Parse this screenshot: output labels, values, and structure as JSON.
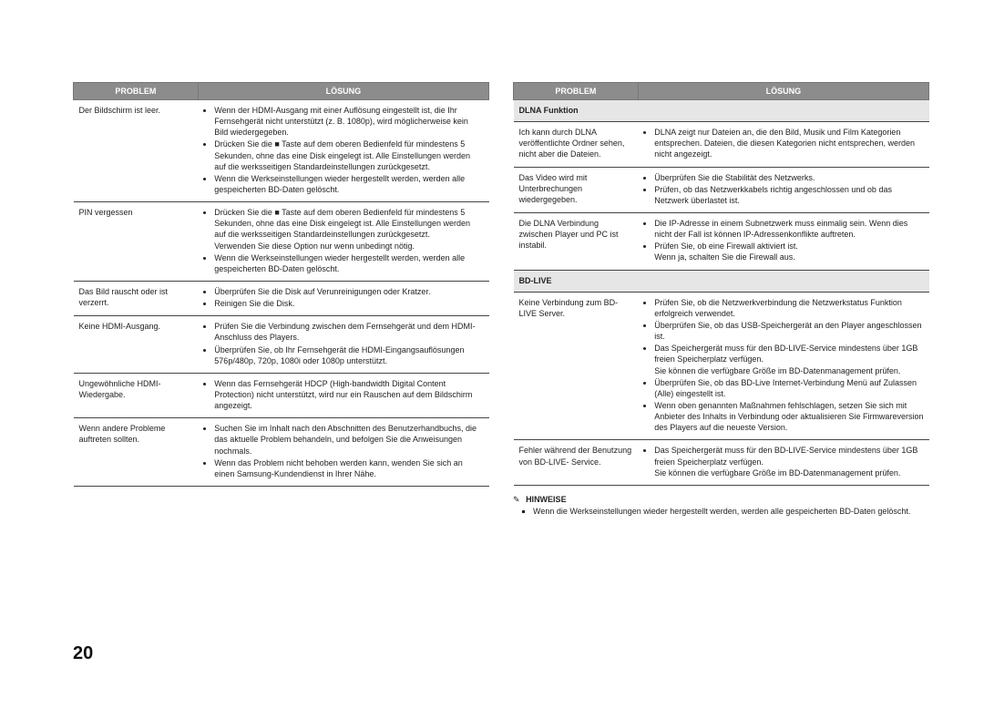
{
  "page_number": "20",
  "headers": {
    "problem": "PROBLEM",
    "solution": "LÖSUNG"
  },
  "left_rows": [
    {
      "problem": "Der Bildschirm ist leer.",
      "bullets": [
        "Wenn der HDMI-Ausgang mit einer Auflösung eingestellt ist, die Ihr Fernsehgerät nicht unterstützt (z. B. 1080p), wird möglicherweise kein Bild wiedergegeben.",
        "Drücken Sie die ■ Taste auf dem oberen Bedienfeld für mindestens 5 Sekunden, ohne das eine Disk eingelegt ist. Alle Einstellungen werden auf die werksseitigen Standardeinstellungen zurückgesetzt.",
        "Wenn die Werkseinstellungen wieder hergestellt werden, werden alle gespeicherten BD-Daten gelöscht."
      ]
    },
    {
      "problem": "PIN vergessen",
      "bullets": [
        "Drücken Sie die ■ Taste auf dem oberen Bedienfeld für mindestens 5 Sekunden, ohne das eine Disk eingelegt ist. Alle Einstellungen werden auf die werksseitigen Standardeinstellungen zurückgesetzt.\nVerwenden Sie diese Option nur wenn unbedingt nötig.",
        "Wenn die Werkseinstellungen wieder hergestellt werden, werden alle gespeicherten BD-Daten gelöscht."
      ]
    },
    {
      "problem": "Das Bild rauscht oder ist verzerrt.",
      "bullets": [
        "Überprüfen Sie die Disk auf Verunreinigungen oder Kratzer.",
        "Reinigen Sie die Disk."
      ]
    },
    {
      "problem": "Keine HDMI-Ausgang.",
      "bullets": [
        "Prüfen Sie die Verbindung zwischen dem Fernsehgerät und dem HDMI-Anschluss des Players.",
        "Überprüfen Sie, ob Ihr Fernsehgerät die HDMI-Eingangsauflösungen 576p/480p, 720p, 1080i oder 1080p unterstützt."
      ]
    },
    {
      "problem": "Ungewöhnliche HDMI-Wiedergabe.",
      "bullets": [
        "Wenn das Fernsehgerät HDCP (High-bandwidth Digital Content Protection) nicht unterstützt, wird nur ein Rauschen auf dem Bildschirm angezeigt."
      ]
    },
    {
      "problem": "Wenn andere Probleme auftreten sollten.",
      "bullets": [
        "Suchen Sie im Inhalt nach den Abschnitten des Benutzerhandbuchs, die das aktuelle Problem behandeln, und befolgen Sie die Anweisungen nochmals.",
        "Wenn das Problem nicht behoben werden kann, wenden Sie sich an einen Samsung-Kundendienst in Ihrer Nähe."
      ]
    }
  ],
  "right_sections": [
    {
      "title": "DLNA Funktion",
      "rows": [
        {
          "problem": "Ich kann durch DLNA veröffentlichte Ordner sehen, nicht aber die Dateien.",
          "bullets": [
            "DLNA zeigt nur Dateien an, die den Bild, Musik und Film Kategorien entsprechen. Dateien, die diesen Kategorien nicht entsprechen, werden nicht angezeigt."
          ]
        },
        {
          "problem": "Das Video wird mit Unterbrechungen wiedergegeben.",
          "bullets": [
            "Überprüfen Sie die Stabilität des Netzwerks.",
            "Prüfen, ob das Netzwerkkabels richtig angeschlossen und ob das Netzwerk überlastet ist."
          ]
        },
        {
          "problem": "Die DLNA Verbindung zwischen Player und PC ist instabil.",
          "bullets": [
            "Die IP-Adresse in einem Subnetzwerk muss einmalig sein. Wenn dies nicht der Fall ist können IP-Adressenkonflikte auftreten.",
            "Prüfen Sie, ob eine Firewall aktiviert ist.\nWenn ja, schalten Sie die Firewall aus."
          ]
        }
      ]
    },
    {
      "title": "BD-LIVE",
      "rows": [
        {
          "problem": "Keine Verbindung zum BD-LIVE Server.",
          "bullets": [
            "Prüfen Sie, ob die Netzwerkverbindung die Netzwerkstatus Funktion erfolgreich verwendet.",
            "Überprüfen Sie, ob das USB-Speichergerät an den Player angeschlossen ist.",
            "Das Speichergerät muss für den BD-LIVE-Service mindestens über 1GB freien Speicherplatz verfügen.\nSie können die verfügbare Größe im BD-Datenmanagement prüfen.",
            "Überprüfen Sie, ob das BD-Live Internet-Verbindung Menü auf Zulassen (Alle) eingestellt ist.",
            "Wenn oben genannten Maßnahmen fehlschlagen, setzen Sie sich mit Anbieter des Inhalts in Verbindung oder aktualisieren Sie Firmwareversion des Players auf die neueste Version."
          ]
        },
        {
          "problem": "Fehler während der Benutzung von BD-LIVE- Service.",
          "bullets": [
            "Das Speichergerät muss für den BD-LIVE-Service mindestens über 1GB freien Speicherplatz verfügen.\nSie können die verfügbare Größe im BD-Datenmanagement prüfen."
          ]
        }
      ]
    }
  ],
  "note": {
    "heading": "HINWEISE",
    "items": [
      "Wenn die Werkseinstellungen wieder hergestellt werden, werden alle gespeicherten BD-Daten gelöscht."
    ]
  },
  "colors": {
    "header_bg": "#8c8c8c",
    "header_text": "#ffffff",
    "section_bg": "#e6e6e6",
    "border": "#444444"
  }
}
